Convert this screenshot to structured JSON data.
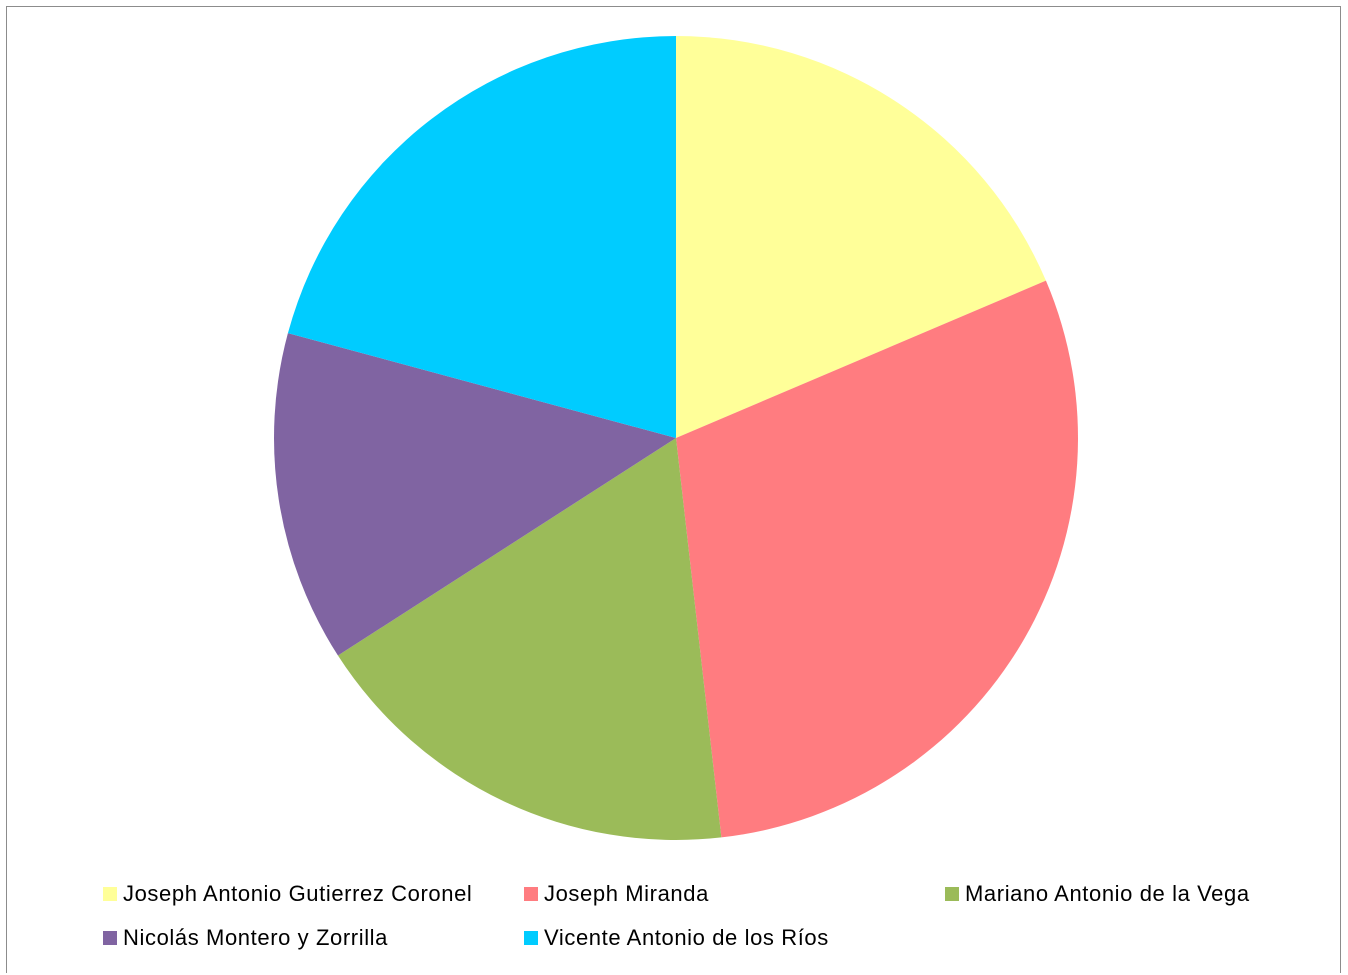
{
  "chart_data": {
    "type": "pie",
    "title": "",
    "start_angle_deg": 0,
    "direction": "clockwise",
    "legend_position": "bottom",
    "slices": [
      {
        "label": "Joseph Antonio Gutierrez Coronel",
        "value": 18.6,
        "color": "#FFFF99"
      },
      {
        "label": "Joseph Miranda",
        "value": 29.6,
        "color": "#FF7C80"
      },
      {
        "label": "Mariano Antonio de la Vega",
        "value": 17.7,
        "color": "#9BBB59"
      },
      {
        "label": "Nicolás Montero y Zorrilla",
        "value": 13.3,
        "color": "#8064A2"
      },
      {
        "label": "Vicente Antonio de los Ríos",
        "value": 20.8,
        "color": "#00CCFF"
      }
    ]
  }
}
